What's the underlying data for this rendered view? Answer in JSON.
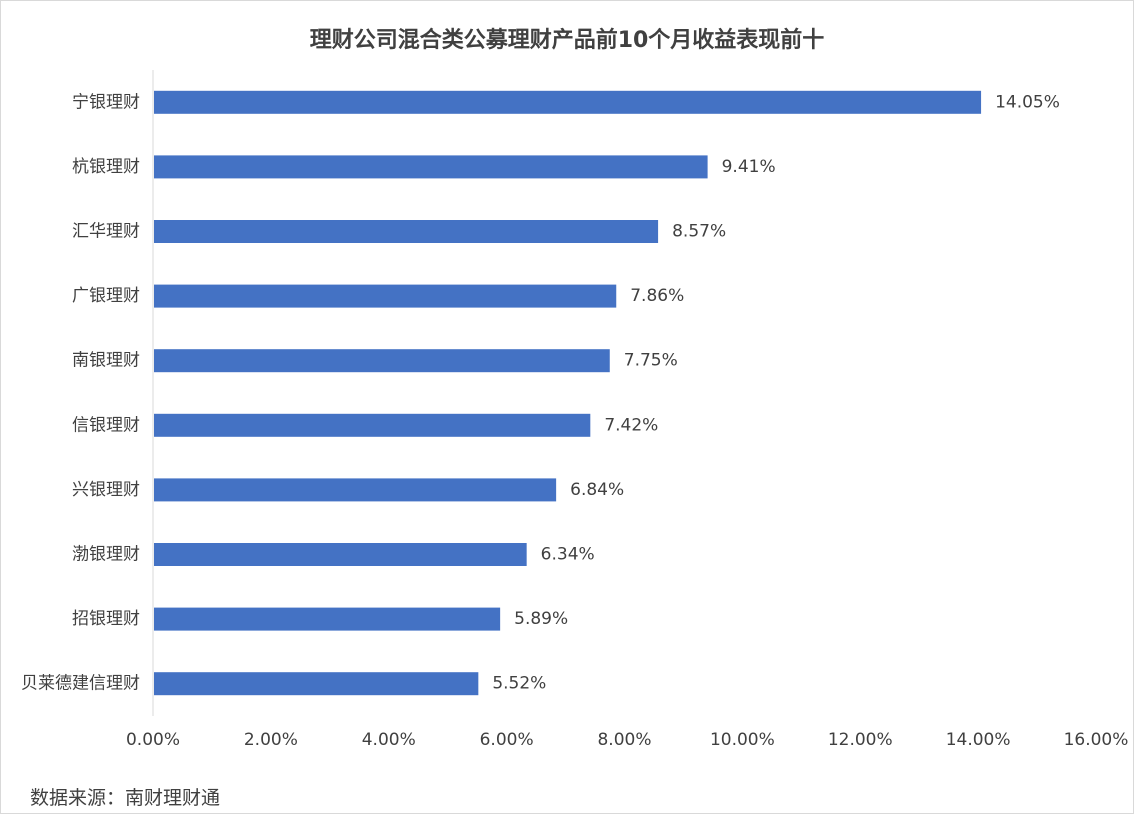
{
  "chart_data": {
    "type": "bar",
    "orientation": "horizontal",
    "title": "理财公司混合类公募理财产品前10个月收益表现前十",
    "categories": [
      "宁银理财",
      "杭银理财",
      "汇华理财",
      "广银理财",
      "南银理财",
      "信银理财",
      "兴银理财",
      "渤银理财",
      "招银理财",
      "贝莱德建信理财"
    ],
    "values": [
      14.05,
      9.41,
      8.57,
      7.86,
      7.75,
      7.42,
      6.84,
      6.34,
      5.89,
      5.52
    ],
    "value_labels": [
      "14.05%",
      "9.41%",
      "8.57%",
      "7.86%",
      "7.75%",
      "7.42%",
      "6.84%",
      "6.34%",
      "5.89%",
      "5.52%"
    ],
    "x_ticks": [
      0,
      2,
      4,
      6,
      8,
      10,
      12,
      14,
      16
    ],
    "x_tick_labels": [
      "0.00%",
      "2.00%",
      "4.00%",
      "6.00%",
      "8.00%",
      "10.00%",
      "12.00%",
      "14.00%",
      "16.00%"
    ],
    "xlim": [
      0,
      16
    ],
    "grid": false,
    "legend": "none",
    "bar_color": "#4472C4",
    "source": "数据来源：南财理财通"
  }
}
